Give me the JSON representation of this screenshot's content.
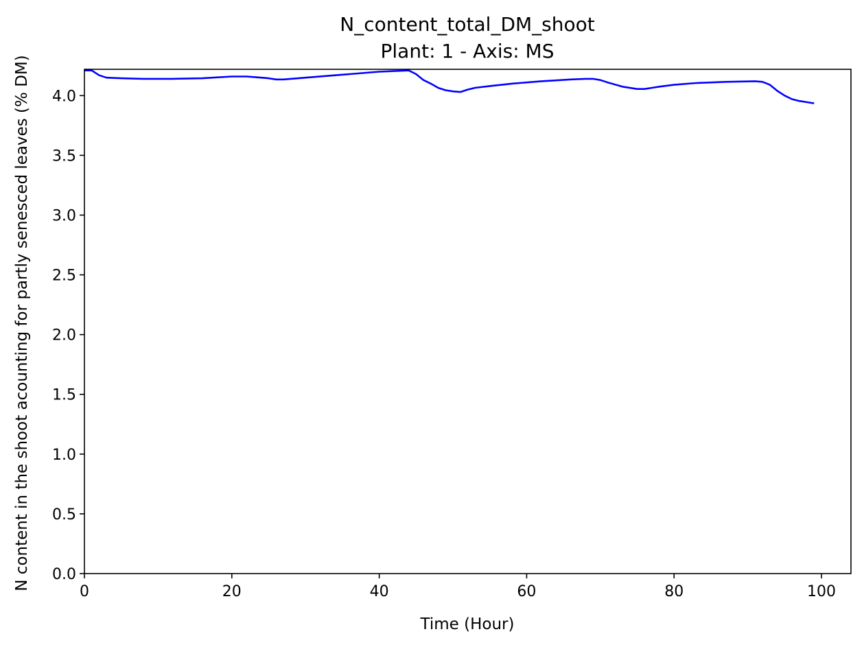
{
  "chart_data": {
    "type": "line",
    "title": "N_content_total_DM_shoot",
    "subtitle": "Plant: 1 - Axis: MS",
    "xlabel": "Time (Hour)",
    "ylabel": "N content in the shoot acounting for partly senesced leaves (% DM)",
    "xlim": [
      0,
      104
    ],
    "ylim": [
      0,
      4.22
    ],
    "xticks": [
      "0",
      "20",
      "40",
      "60",
      "80",
      "100"
    ],
    "yticks": [
      "0.0",
      "0.5",
      "1.0",
      "1.5",
      "2.0",
      "2.5",
      "3.0",
      "3.5",
      "4.0"
    ],
    "xtick_values": [
      0,
      20,
      40,
      60,
      80,
      100
    ],
    "ytick_values": [
      0,
      0.5,
      1.0,
      1.5,
      2.0,
      2.5,
      3.0,
      3.5,
      4.0
    ],
    "grid": false,
    "series": [
      {
        "color": "#0000ff",
        "x": [
          0,
          1,
          2,
          3,
          5,
          8,
          12,
          16,
          20,
          21,
          22,
          23,
          24,
          25,
          26,
          27,
          28,
          30,
          33,
          36,
          40,
          42,
          44,
          45,
          46,
          47,
          48,
          49,
          50,
          51,
          52,
          53,
          55,
          58,
          62,
          66,
          68,
          69,
          70,
          71,
          73,
          75,
          76,
          77,
          78,
          80,
          83,
          87,
          91,
          92,
          93,
          94,
          95,
          96,
          97,
          98,
          99
        ],
        "y": [
          4.21,
          4.21,
          4.17,
          4.15,
          4.145,
          4.14,
          4.14,
          4.145,
          4.16,
          4.16,
          4.16,
          4.155,
          4.15,
          4.145,
          4.135,
          4.135,
          4.14,
          4.15,
          4.165,
          4.18,
          4.2,
          4.205,
          4.21,
          4.18,
          4.13,
          4.1,
          4.065,
          4.045,
          4.035,
          4.03,
          4.05,
          4.065,
          4.08,
          4.1,
          4.12,
          4.135,
          4.14,
          4.14,
          4.13,
          4.11,
          4.075,
          4.055,
          4.055,
          4.065,
          4.075,
          4.09,
          4.105,
          4.115,
          4.12,
          4.115,
          4.09,
          4.04,
          4.0,
          3.97,
          3.955,
          3.945,
          3.935
        ]
      }
    ]
  }
}
